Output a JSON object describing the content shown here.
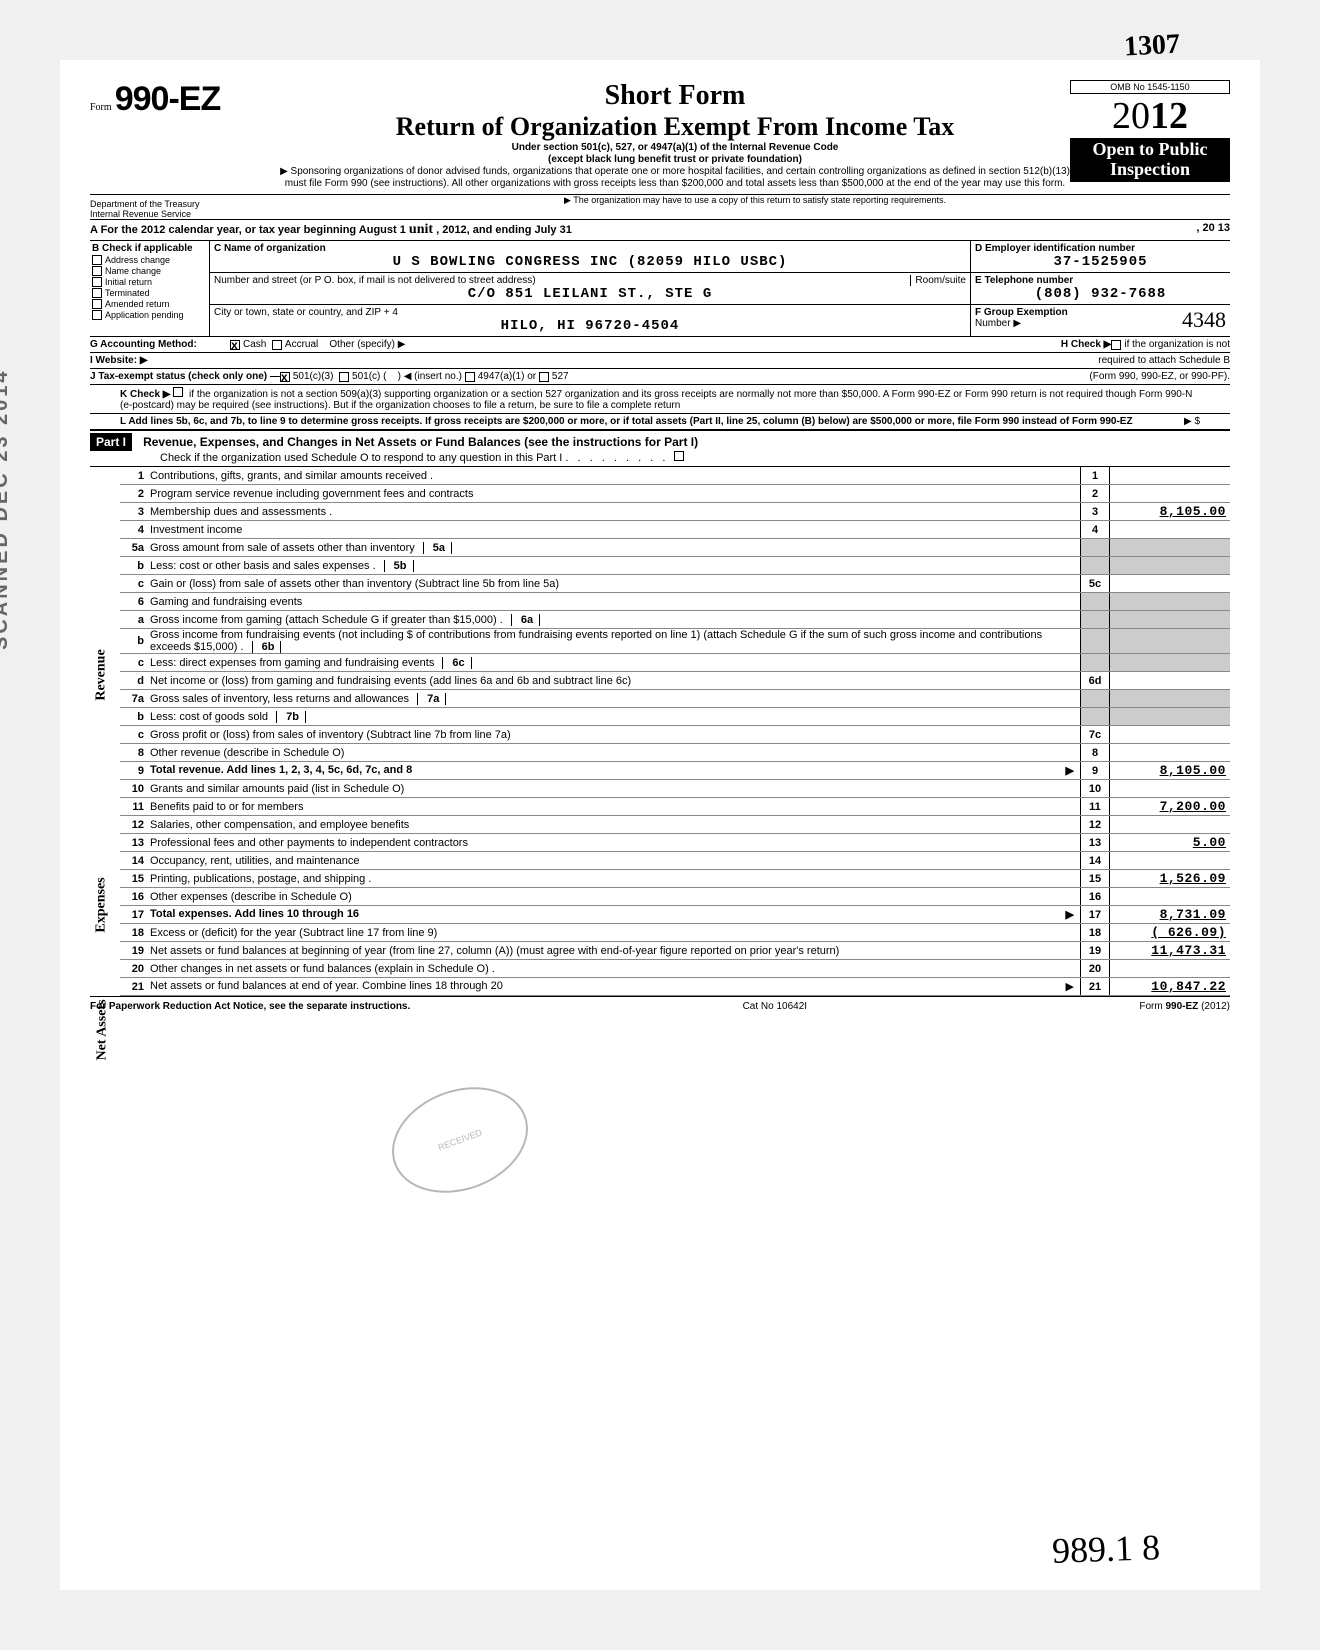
{
  "form": {
    "prefix": "Form",
    "number": "990-EZ",
    "dept1": "Department of the Treasury",
    "dept2": "Internal Revenue Service",
    "short_form": "Short Form",
    "main_title": "Return of Organization Exempt From Income Tax",
    "subtitle1": "Under section 501(c), 527, or 4947(a)(1) of the Internal Revenue Code",
    "subtitle2": "(except black lung benefit trust or private foundation)",
    "sponsor": "▶ Sponsoring organizations of donor advised funds, organizations that operate one or more hospital facilities, and certain controlling organizations as defined in section 512(b)(13) must file Form 990 (see instructions). All other organizations with gross receipts less than $200,000 and total assets less than $500,000 at the end of the year may use this form.",
    "copy_note": "▶ The organization may have to use a copy of this return to satisfy state reporting requirements.",
    "omb": "OMB No 1545-1150",
    "year_prefix": "20",
    "year_bold": "12",
    "open_public1": "Open to Public",
    "open_public2": "Inspection"
  },
  "handwritten_top": "1307",
  "section_a": {
    "text": "A  For the 2012 calendar year, or tax year beginning  August  1",
    "hw_insert": "unit",
    "text2": ", 2012, and ending July  31",
    "text3": ", 20 13"
  },
  "b": {
    "header": "B  Check if applicable",
    "items": [
      "Address change",
      "Name change",
      "Initial return",
      "Terminated",
      "Amended return",
      "Application pending"
    ]
  },
  "c": {
    "name_label": "C  Name of organization",
    "name": "U S BOWLING CONGRESS INC (82059 HILO USBC)",
    "addr_label": "Number and street (or P O. box, if mail is not delivered to street address)",
    "room": "Room/suite",
    "addr": "C/O 851 LEILANI ST., STE G",
    "city_label": "City or town, state or country, and ZIP + 4",
    "city": "HILO, HI    96720-4504"
  },
  "de": {
    "d_label": "D  Employer identification number",
    "d_val": "37-1525905",
    "e_label": "E  Telephone number",
    "e_val": "(808) 932-7688",
    "f_label": "F  Group Exemption",
    "f_label2": "Number ▶",
    "f_hw": "4348"
  },
  "g": {
    "label": "G  Accounting Method:",
    "cash": "Cash",
    "accrual": "Accrual",
    "other": "Other (specify) ▶"
  },
  "h": {
    "label": "H  Check ▶",
    "text": "if the organization is not",
    "text2": "required to attach Schedule B",
    "text3": "(Form 990, 990-EZ, or 990-PF)."
  },
  "i": {
    "label": "I  Website: ▶"
  },
  "j": {
    "label": "J  Tax-exempt status (check only one) —",
    "o1": "501(c)(3)",
    "o2": "501(c) (",
    "o2b": ")  ◀ (insert no.)",
    "o3": "4947(a)(1) or",
    "o4": "527"
  },
  "k": {
    "label": "K  Check ▶",
    "text": "if the organization is not a section 509(a)(3) supporting organization or a section 527 organization and its gross receipts are normally not more than $50,000. A Form 990-EZ or Form 990 return is not required though Form 990-N (e-postcard) may be required (see instructions). But if the organization chooses to file a return, be sure to file a complete return"
  },
  "l": {
    "text": "L  Add lines 5b, 6c, and 7b, to line 9 to determine gross receipts. If gross receipts are $200,000 or more, or if total assets (Part II, line 25, column (B) below) are $500,000 or more, file Form 990 instead of Form 990-EZ",
    "arrow": "▶  $"
  },
  "part1": {
    "label": "Part I",
    "title": "Revenue, Expenses, and Changes in Net Assets or Fund Balances (see the instructions for Part I)",
    "check": "Check if the organization used Schedule O to respond to any question in this Part I"
  },
  "side_labels": {
    "revenue": "Revenue",
    "expenses": "Expenses",
    "netassets": "Net Assets",
    "scanned": "SCANNED DEC 23 2014"
  },
  "lines": [
    {
      "no": "1",
      "text": "Contributions, gifts, grants, and similar amounts received .",
      "box": "1",
      "val": ""
    },
    {
      "no": "2",
      "text": "Program service revenue including government fees and contracts",
      "box": "2",
      "val": ""
    },
    {
      "no": "3",
      "text": "Membership dues and assessments .",
      "box": "3",
      "val": "8,105.00"
    },
    {
      "no": "4",
      "text": "Investment income",
      "box": "4",
      "val": ""
    },
    {
      "no": "5a",
      "text": "Gross amount from sale of assets other than inventory",
      "inner": "5a",
      "box": "",
      "val": "",
      "shaded": true
    },
    {
      "no": "b",
      "text": "Less: cost or other basis and sales expenses .",
      "inner": "5b",
      "box": "",
      "val": "",
      "shaded": true
    },
    {
      "no": "c",
      "text": "Gain or (loss) from sale of assets other than inventory (Subtract line 5b from line 5a)",
      "box": "5c",
      "val": ""
    },
    {
      "no": "6",
      "text": "Gaming and fundraising events",
      "box": "",
      "val": "",
      "shaded": true
    },
    {
      "no": "a",
      "text": "Gross income from gaming (attach Schedule G if greater than $15,000) .",
      "inner": "6a",
      "box": "",
      "val": "",
      "shaded": true
    },
    {
      "no": "b",
      "text": "Gross income from fundraising events (not including  $                    of contributions from fundraising events reported on line 1) (attach Schedule G if the sum of such gross income and contributions exceeds $15,000) .",
      "inner": "6b",
      "box": "",
      "val": "",
      "shaded": true
    },
    {
      "no": "c",
      "text": "Less: direct expenses from gaming and fundraising events",
      "inner": "6c",
      "box": "",
      "val": "",
      "shaded": true
    },
    {
      "no": "d",
      "text": "Net income or (loss) from gaming and fundraising events (add lines 6a and 6b and subtract line 6c)",
      "box": "6d",
      "val": ""
    },
    {
      "no": "7a",
      "text": "Gross sales of inventory, less returns and allowances",
      "inner": "7a",
      "box": "",
      "val": "",
      "shaded": true
    },
    {
      "no": "b",
      "text": "Less: cost of goods sold",
      "inner": "7b",
      "box": "",
      "val": "",
      "shaded": true
    },
    {
      "no": "c",
      "text": "Gross profit or (loss) from sales of inventory (Subtract line 7b from line 7a)",
      "box": "7c",
      "val": ""
    },
    {
      "no": "8",
      "text": "Other revenue (describe in Schedule O)",
      "box": "8",
      "val": ""
    },
    {
      "no": "9",
      "text": "Total revenue. Add lines 1, 2, 3, 4, 5c, 6d, 7c, and 8",
      "box": "9",
      "val": "8,105.00",
      "bold": true,
      "arrow": true
    },
    {
      "no": "10",
      "text": "Grants and similar amounts paid (list in Schedule O)",
      "box": "10",
      "val": ""
    },
    {
      "no": "11",
      "text": "Benefits paid to or for members",
      "box": "11",
      "val": "7,200.00"
    },
    {
      "no": "12",
      "text": "Salaries, other compensation, and employee benefits",
      "box": "12",
      "val": ""
    },
    {
      "no": "13",
      "text": "Professional fees and other payments to independent contractors",
      "box": "13",
      "val": "5.00"
    },
    {
      "no": "14",
      "text": "Occupancy, rent, utilities, and maintenance",
      "box": "14",
      "val": ""
    },
    {
      "no": "15",
      "text": "Printing, publications, postage, and shipping .",
      "box": "15",
      "val": "1,526.09"
    },
    {
      "no": "16",
      "text": "Other expenses (describe in Schedule O)",
      "box": "16",
      "val": ""
    },
    {
      "no": "17",
      "text": "Total expenses. Add lines 10 through 16",
      "box": "17",
      "val": "8,731.09",
      "bold": true,
      "arrow": true
    },
    {
      "no": "18",
      "text": "Excess or (deficit) for the year (Subtract line 17 from line 9)",
      "box": "18",
      "val": "(   626.09)"
    },
    {
      "no": "19",
      "text": "Net assets or fund balances at beginning of year (from line 27, column (A)) (must agree with end-of-year figure reported on prior year's return)",
      "box": "19",
      "val": "11,473.31"
    },
    {
      "no": "20",
      "text": "Other changes in net assets or fund balances (explain in Schedule O) .",
      "box": "20",
      "val": ""
    },
    {
      "no": "21",
      "text": "Net assets or fund balances at end of year. Combine lines 18 through 20",
      "box": "21",
      "val": "10,847.22",
      "arrow": true
    }
  ],
  "footer": {
    "left": "For Paperwork Reduction Act Notice, see the separate instructions.",
    "mid": "Cat  No  10642I",
    "right": "Form 990-EZ (2012)"
  },
  "received_stamp": "RECEIVED",
  "hw_bottom": "989.1  8"
}
